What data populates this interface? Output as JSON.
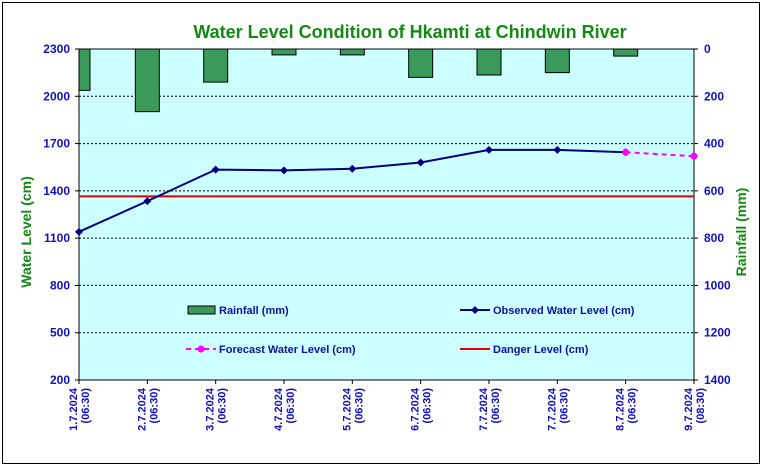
{
  "chart_data": {
    "type": "bar+line",
    "title": "Water Level Condition of Hkamti at Chindwin River",
    "ylabel_left": "Water Level (cm)",
    "ylabel_right": "Rainfall (mm)",
    "ylim_left": [
      200,
      2300
    ],
    "ylim_right": [
      0,
      1400
    ],
    "yticks_left": [
      "2300",
      "2000",
      "1700",
      "1400",
      "1100",
      "800",
      "500",
      "200"
    ],
    "yticks_right": [
      "0",
      "200",
      "400",
      "600",
      "800",
      "1000",
      "1200",
      "1400"
    ],
    "right_axis_inverted": true,
    "grid": true,
    "categories": [
      [
        "1.7.2024",
        "(06:30)"
      ],
      [
        "2.7.2024",
        "(06:30)"
      ],
      [
        "3.7.2024",
        "(06:30)"
      ],
      [
        "4.7.2024",
        "(06:30)"
      ],
      [
        "5.7.2024",
        "(06:30)"
      ],
      [
        "6.7.2024",
        "(06:30)"
      ],
      [
        "7.7.2024",
        "(06:30)"
      ],
      [
        "7.7.2024",
        "(06:30)"
      ],
      [
        "8.7.2024",
        "(06:30)"
      ],
      [
        "9.7.2024",
        "(08:30)"
      ]
    ],
    "series": [
      {
        "name": "Rainfall (mm)",
        "kind": "bar",
        "axis": "right",
        "color": "#3a9a5c",
        "values": [
          175,
          265,
          140,
          25,
          25,
          120,
          110,
          100,
          30,
          null
        ]
      },
      {
        "name": "Observed Water Level (cm)",
        "kind": "line",
        "axis": "left",
        "color": "#000080",
        "values": [
          1140,
          1335,
          1535,
          1530,
          1540,
          1580,
          1660,
          1660,
          1645,
          null
        ]
      },
      {
        "name": "Forecast Water Level (cm)",
        "kind": "line-dashed",
        "axis": "left",
        "color": "#ff00ff",
        "values": [
          null,
          null,
          null,
          null,
          null,
          null,
          null,
          null,
          1645,
          1620
        ]
      },
      {
        "name": "Danger Level (cm)",
        "kind": "hline",
        "axis": "left",
        "color": "#e00000",
        "value": 1365
      }
    ],
    "legend_placement": "inside-bottom"
  }
}
